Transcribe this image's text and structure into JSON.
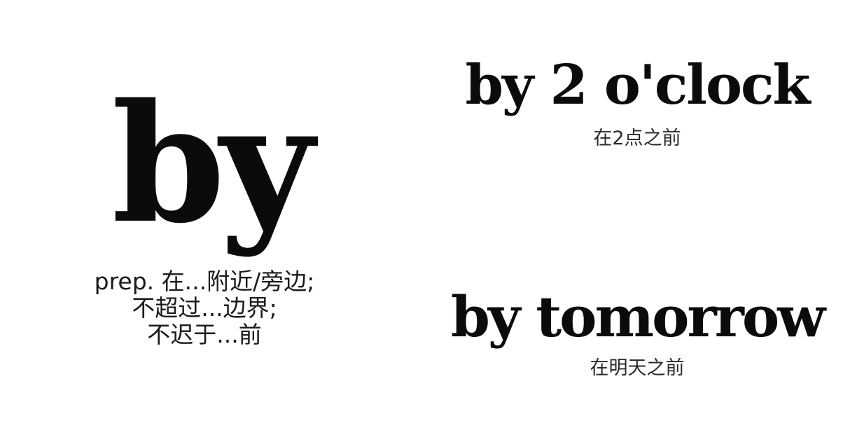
{
  "headword": "by",
  "definition": {
    "lines": [
      "prep. 在...附近/旁边;",
      "不超过...边界;",
      "不迟于...前"
    ]
  },
  "examples": [
    {
      "phrase": "by 2 o'clock",
      "translation": "在2点之前"
    },
    {
      "phrase": "by tomorrow",
      "translation": "在明天之前"
    }
  ]
}
